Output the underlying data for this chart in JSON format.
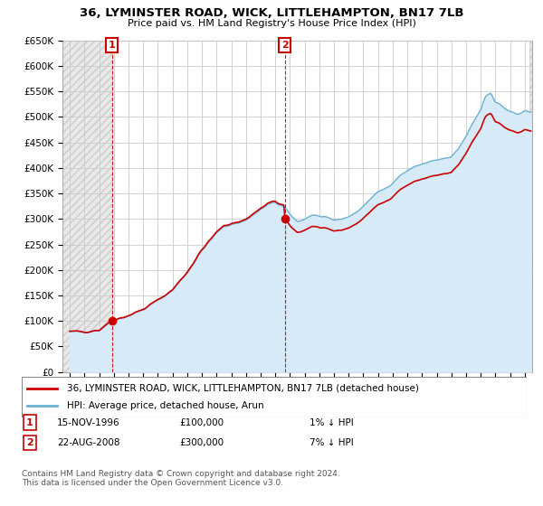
{
  "title": "36, LYMINSTER ROAD, WICK, LITTLEHAMPTON, BN17 7LB",
  "subtitle": "Price paid vs. HM Land Registry's House Price Index (HPI)",
  "ylabel_ticks": [
    "£0",
    "£50K",
    "£100K",
    "£150K",
    "£200K",
    "£250K",
    "£300K",
    "£350K",
    "£400K",
    "£450K",
    "£500K",
    "£550K",
    "£600K",
    "£650K"
  ],
  "ytick_values": [
    0,
    50000,
    100000,
    150000,
    200000,
    250000,
    300000,
    350000,
    400000,
    450000,
    500000,
    550000,
    600000,
    650000
  ],
  "xlim_start": 1993.5,
  "xlim_end": 2025.5,
  "ylim_min": 0,
  "ylim_max": 650000,
  "price_paid": [
    {
      "year": 1996.88,
      "price": 100000,
      "label": "1"
    },
    {
      "year": 2008.64,
      "price": 300000,
      "label": "2"
    }
  ],
  "hpi_line_color": "#6ab0d4",
  "hpi_fill_color": "#d6eaf8",
  "price_line_color": "#cc0000",
  "annotation_box_color": "#cc0000",
  "legend_label_price": "36, LYMINSTER ROAD, WICK, LITTLEHAMPTON, BN17 7LB (detached house)",
  "legend_label_hpi": "HPI: Average price, detached house, Arun",
  "note1_label": "1",
  "note1_date": "15-NOV-1996",
  "note1_price": "£100,000",
  "note1_hpi": "1% ↓ HPI",
  "note2_label": "2",
  "note2_date": "22-AUG-2008",
  "note2_price": "£300,000",
  "note2_hpi": "7% ↓ HPI",
  "footer": "Contains HM Land Registry data © Crown copyright and database right 2024.\nThis data is licensed under the Open Government Licence v3.0.",
  "background_color": "#ffffff",
  "plot_bg_color": "#ffffff",
  "grid_color": "#cccccc",
  "hatch_color": "#e8e8e8"
}
